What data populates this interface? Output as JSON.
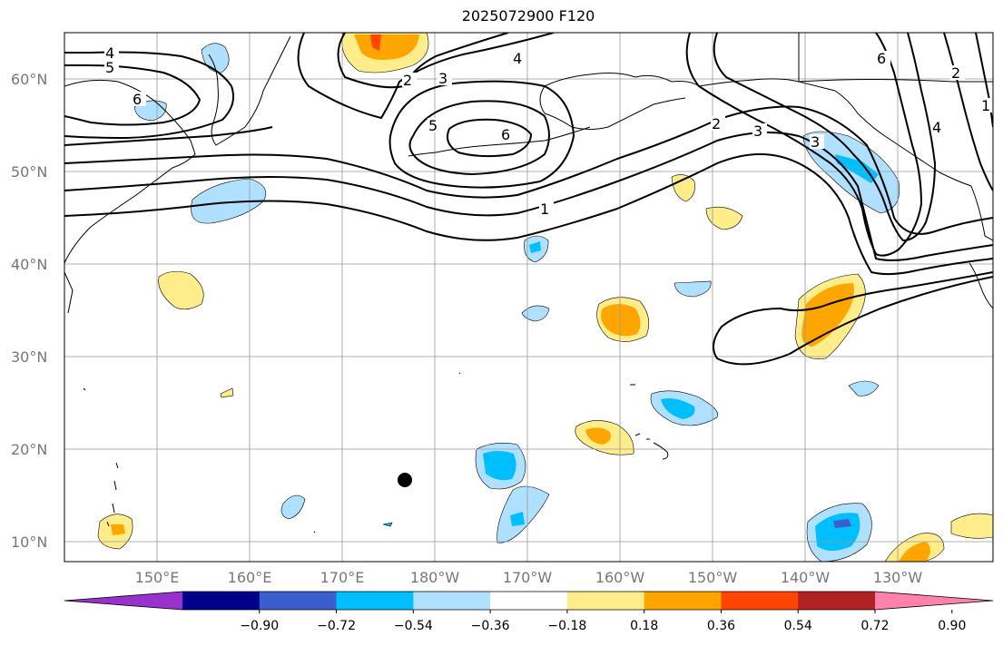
{
  "title": "2025072900 F120",
  "lat_ticks": [
    "60°N",
    "50°N",
    "40°N",
    "30°N",
    "20°N",
    "10°N"
  ],
  "lon_ticks": [
    "150°E",
    "160°E",
    "170°E",
    "180°W",
    "170°W",
    "160°W",
    "150°W",
    "140°W",
    "130°W"
  ],
  "contour_labels": [
    "4",
    "5",
    "6",
    "2",
    "3",
    "4",
    "5",
    "6",
    "2",
    "3",
    "3",
    "1",
    "6",
    "2",
    "4",
    "1"
  ],
  "colorbar": {
    "ticks": [
      "−0.90",
      "−0.72",
      "−0.54",
      "−0.36",
      "−0.18",
      "0.18",
      "0.36",
      "0.54",
      "0.72",
      "0.90"
    ],
    "colors": [
      "#9932cc",
      "#00008b",
      "#3a5fcd",
      "#00bfff",
      "#b0e0ff",
      "#ffffff",
      "#ffec8b",
      "#ffa500",
      "#ff4500",
      "#b22222",
      "#ff82ab"
    ]
  }
}
